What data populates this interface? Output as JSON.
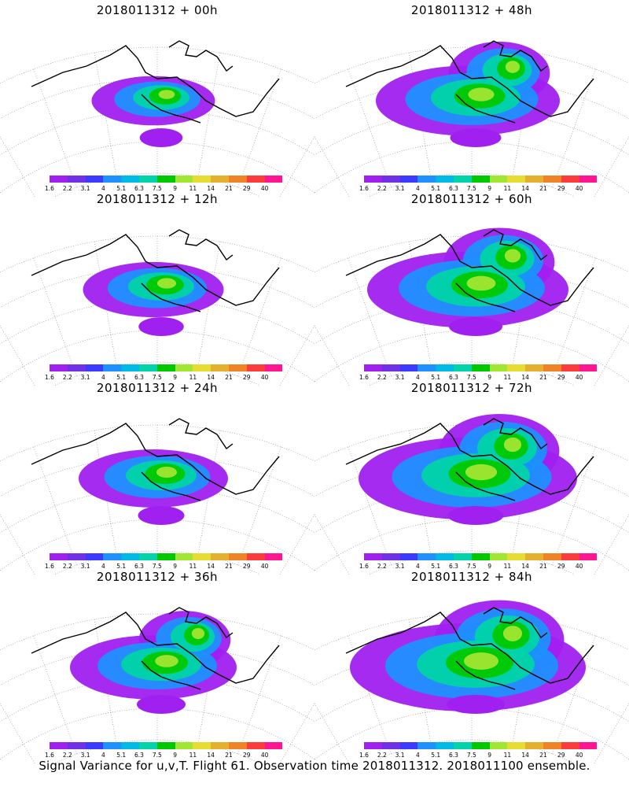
{
  "colorbar": {
    "colors": [
      "#a020f0",
      "#7030e6",
      "#3b3bff",
      "#1e90ff",
      "#00b8e6",
      "#00d4a8",
      "#00c800",
      "#a0e632",
      "#e6dc32",
      "#e6af2d",
      "#f08228",
      "#fa3c3c",
      "#ff1493"
    ],
    "labels": [
      "1.6",
      "2.2",
      "3.1",
      "4",
      "5.1",
      "6.3",
      "7.5",
      "9",
      "11",
      "14",
      "21",
      "29",
      "40"
    ]
  },
  "panels": [
    {
      "title": "2018011312 + 00h",
      "spread": 0.35
    },
    {
      "title": "2018011312 + 48h",
      "spread": 0.7
    },
    {
      "title": "2018011312 + 12h",
      "spread": 0.45
    },
    {
      "title": "2018011312 + 60h",
      "spread": 0.8
    },
    {
      "title": "2018011312 + 24h",
      "spread": 0.5
    },
    {
      "title": "2018011312 + 72h",
      "spread": 0.9
    },
    {
      "title": "2018011312 + 36h",
      "spread": 0.6
    },
    {
      "title": "2018011312 + 84h",
      "spread": 1.0
    }
  ],
  "footer": "Signal Variance for u,v,T. Flight 61. Observation time 2018011312. 2018011100 ensemble."
}
